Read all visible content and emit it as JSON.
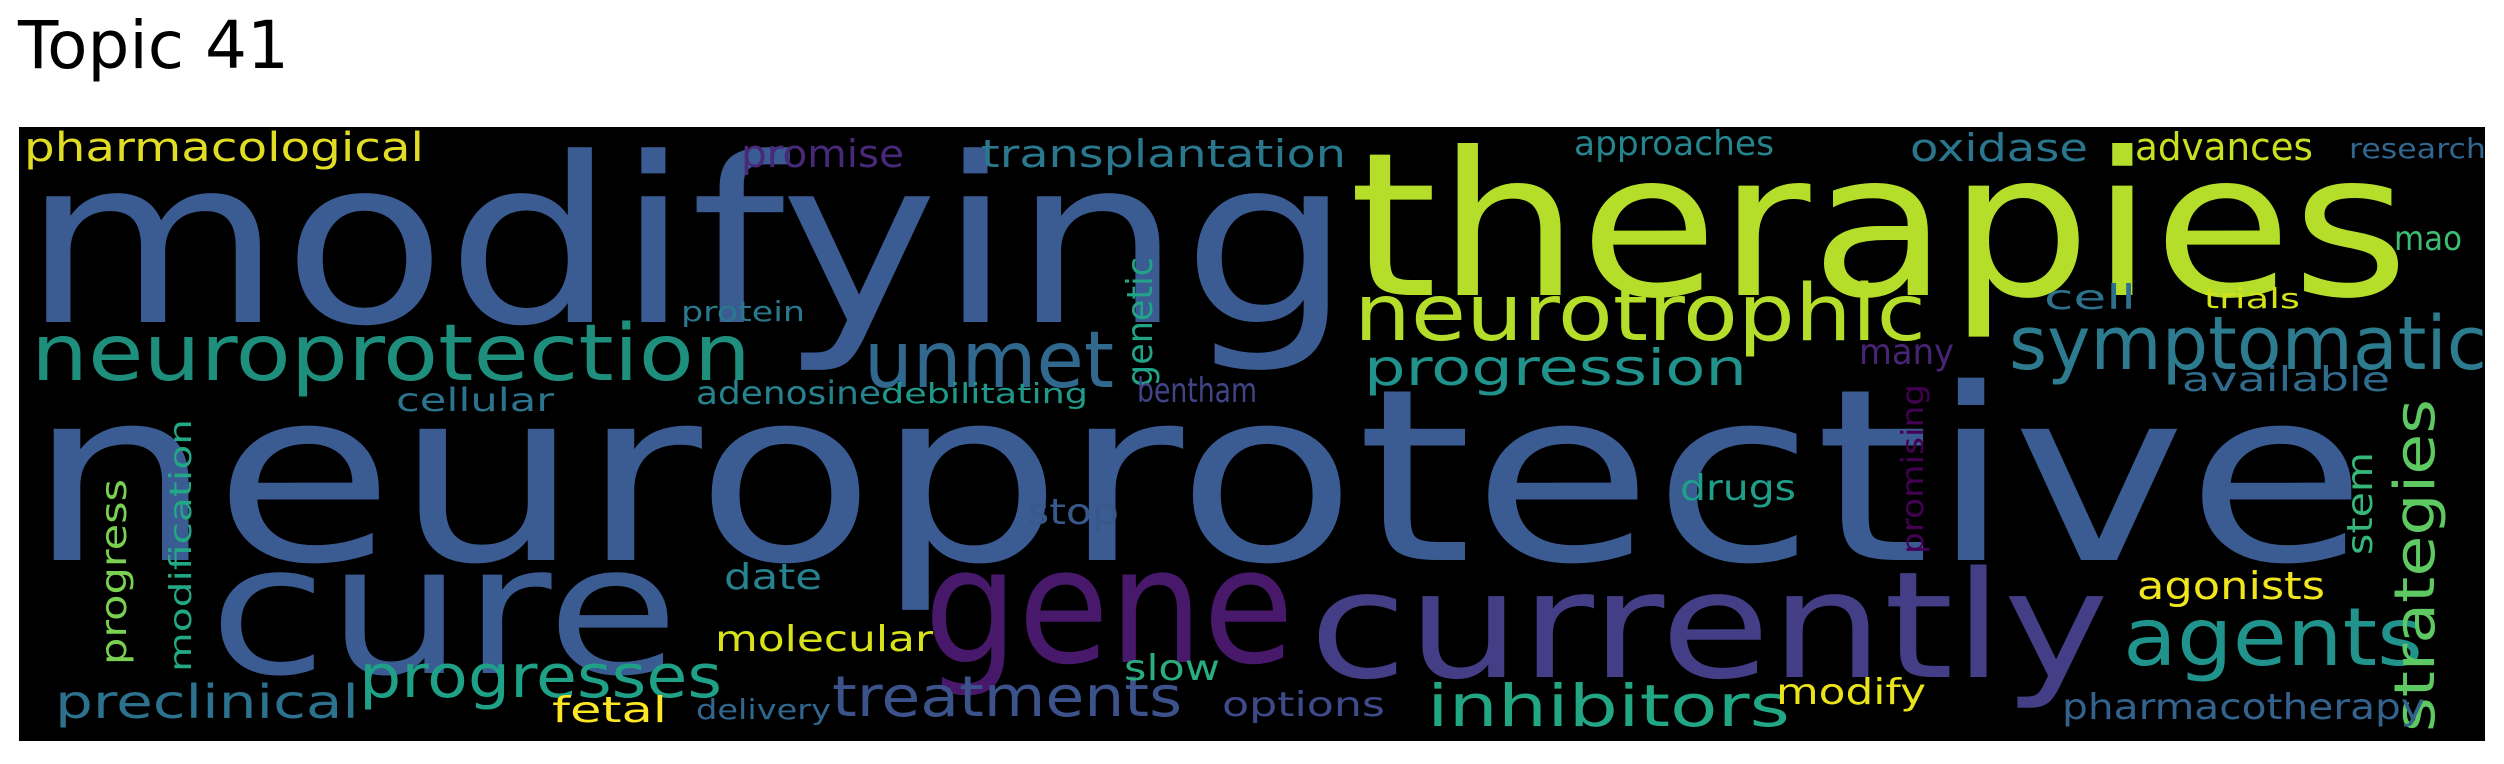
{
  "title": "Topic 41",
  "words": [
    {
      "text": "neuroprotective",
      "color": "#3b5b93"
    },
    {
      "text": "modifying",
      "color": "#3b5b93"
    },
    {
      "text": "therapies",
      "color": "#b5de2b"
    },
    {
      "text": "cure",
      "color": "#3b5b93"
    },
    {
      "text": "gene",
      "color": "#48186a"
    },
    {
      "text": "currently",
      "color": "#433e85"
    },
    {
      "text": "neurotrophic",
      "color": "#b5de2b"
    },
    {
      "text": "neuroprotection",
      "color": "#1f8f7d"
    },
    {
      "text": "unmet",
      "color": "#31688e"
    },
    {
      "text": "symptomatic",
      "color": "#2c7b8e"
    },
    {
      "text": "agents",
      "color": "#20938c"
    },
    {
      "text": "progression",
      "color": "#20938c"
    },
    {
      "text": "progresses",
      "color": "#1fa187"
    },
    {
      "text": "treatments",
      "color": "#3b528b"
    },
    {
      "text": "inhibitors",
      "color": "#22a785"
    },
    {
      "text": "preclinical",
      "color": "#2c728e"
    },
    {
      "text": "strategies",
      "color": "#5ec962"
    },
    {
      "text": "pharmacological",
      "color": "#e1dd25"
    },
    {
      "text": "promise",
      "color": "#482878"
    },
    {
      "text": "transplantation",
      "color": "#2a788e"
    },
    {
      "text": "approaches",
      "color": "#25858e"
    },
    {
      "text": "oxidase",
      "color": "#2a768e"
    },
    {
      "text": "advances",
      "color": "#c8e020"
    },
    {
      "text": "research",
      "color": "#31668e"
    },
    {
      "text": "mao",
      "color": "#3dbc74"
    },
    {
      "text": "genetic",
      "color": "#20a386"
    },
    {
      "text": "protein",
      "color": "#2a788e"
    },
    {
      "text": "cell",
      "color": "#2d718e"
    },
    {
      "text": "trials",
      "color": "#d4e21a"
    },
    {
      "text": "many",
      "color": "#482475"
    },
    {
      "text": "available",
      "color": "#2f6c8e"
    },
    {
      "text": "cellular",
      "color": "#2c738e"
    },
    {
      "text": "adenosine",
      "color": "#26838e"
    },
    {
      "text": "debilitating",
      "color": "#1f998a"
    },
    {
      "text": "bentham",
      "color": "#414487"
    },
    {
      "text": "promising",
      "color": "#440154"
    },
    {
      "text": "stem",
      "color": "#35b779"
    },
    {
      "text": "drugs",
      "color": "#1f9e89"
    },
    {
      "text": "modification",
      "color": "#22a884"
    },
    {
      "text": "progress",
      "color": "#7ad151"
    },
    {
      "text": "stop",
      "color": "#38588c"
    },
    {
      "text": "date",
      "color": "#26828e"
    },
    {
      "text": "agonists",
      "color": "#f1e51d"
    },
    {
      "text": "molecular",
      "color": "#d8e219"
    },
    {
      "text": "slow",
      "color": "#29af7f"
    },
    {
      "text": "fetal",
      "color": "#fde725"
    },
    {
      "text": "delivery",
      "color": "#31678e"
    },
    {
      "text": "options",
      "color": "#3e4a89"
    },
    {
      "text": "modify",
      "color": "#e8e419"
    },
    {
      "text": "pharmacotherapy",
      "color": "#33638d"
    }
  ]
}
